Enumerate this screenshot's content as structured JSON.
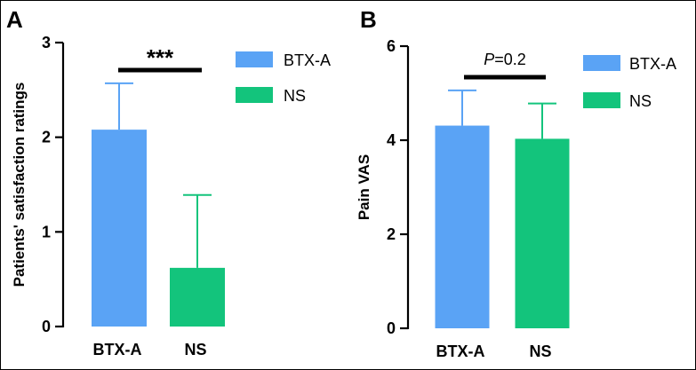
{
  "chart_data": [
    {
      "type": "bar",
      "panel": "A",
      "ylabel": "Patients' satisfaction ratings",
      "ylim": [
        0,
        3
      ],
      "yticks": [
        0,
        1,
        2,
        3
      ],
      "categories": [
        "BTX-A",
        "NS"
      ],
      "values": [
        2.08,
        0.62
      ],
      "errors": [
        0.49,
        0.77
      ],
      "colors": [
        "#5aa3f5",
        "#13c47c"
      ],
      "significance": {
        "stars": "***",
        "p_prefix": "",
        "p_value": ""
      },
      "legend": [
        "BTX-A",
        "NS"
      ]
    },
    {
      "type": "bar",
      "panel": "B",
      "ylabel": "Pain VAS",
      "ylim": [
        0,
        6
      ],
      "yticks": [
        0,
        2,
        4,
        6
      ],
      "categories": [
        "BTX-A",
        "NS"
      ],
      "values": [
        4.31,
        4.03
      ],
      "errors": [
        0.75,
        0.75
      ],
      "colors": [
        "#5aa3f5",
        "#13c47c"
      ],
      "significance": {
        "stars": "",
        "p_prefix": "P",
        "p_value": "=0.2"
      },
      "legend": [
        "BTX-A",
        "NS"
      ]
    }
  ]
}
